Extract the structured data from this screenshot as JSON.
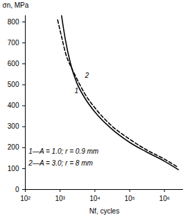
{
  "chart_data": {
    "type": "line",
    "x_label": "Nf, cycles",
    "y_label": "σn, MPa",
    "log": "x",
    "xlim": [
      100,
      3500000
    ],
    "xticks": [
      {
        "value": 100,
        "label": "10²"
      },
      {
        "value": 1000,
        "label": "10³"
      },
      {
        "value": 10000,
        "label": "10⁴"
      },
      {
        "value": 100000,
        "label": "10⁵"
      },
      {
        "value": 1000000,
        "label": "10⁶"
      }
    ],
    "ylim": [
      0,
      830
    ],
    "yticks": [
      0,
      100,
      200,
      300,
      400,
      500,
      600,
      700,
      800
    ],
    "grid": false,
    "series": [
      {
        "name": "1",
        "color": "#000000",
        "line_style": "solid",
        "x": [
          1100,
          1400,
          2000,
          3000,
          5000,
          10000,
          30000,
          100000,
          300000,
          1000000,
          2500000
        ],
        "values": [
          830,
          720,
          600,
          510,
          440,
          370,
          290,
          225,
          180,
          135,
          95
        ]
      },
      {
        "name": "2",
        "color": "#000000",
        "line_style": "dashed",
        "x": [
          850,
          1100,
          1500,
          2000,
          3000,
          5000,
          10000,
          30000,
          100000,
          300000,
          1000000,
          2500000
        ],
        "values": [
          810,
          730,
          640,
          590,
          530,
          460,
          390,
          305,
          240,
          190,
          145,
          105
        ]
      }
    ],
    "annotations": [
      {
        "text": "1",
        "x": 2600,
        "y": 470
      },
      {
        "text": "2",
        "x": 5200,
        "y": 545
      },
      {
        "text": "1—A = 1.0; r = 0.9 mm",
        "x": 125,
        "y": 180
      },
      {
        "text": "2—A = 3.0; r = 8 mm",
        "x": 125,
        "y": 125
      }
    ]
  }
}
